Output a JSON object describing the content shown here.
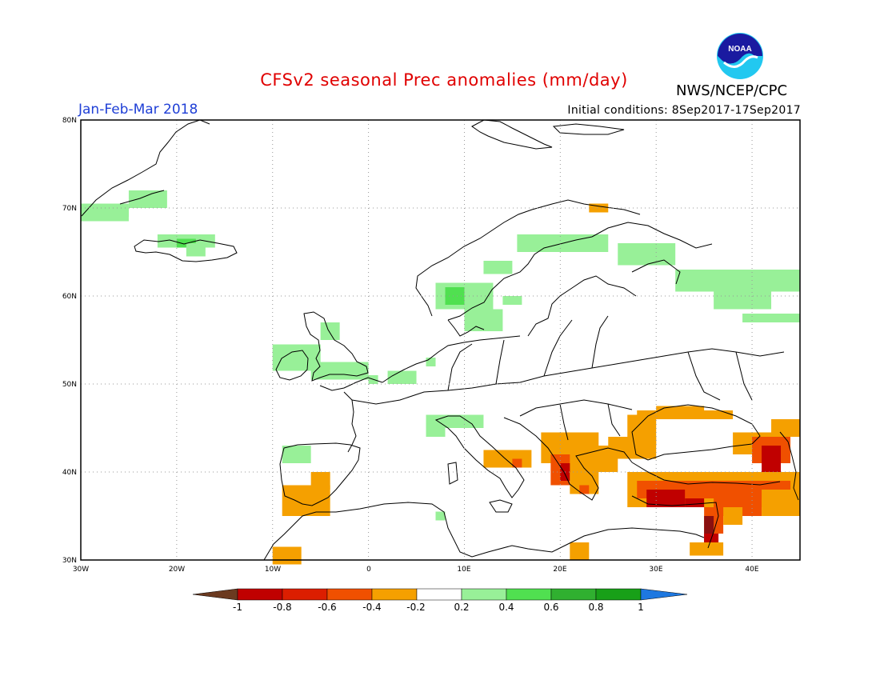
{
  "header": {
    "title": "CFSv2 seasonal Prec anomalies (mm/day)",
    "season": "Jan-Feb-Mar 2018",
    "initial_conditions": "Initial conditions: 8Sep2017-17Sep2017",
    "agency": "NWS/NCEP/CPC",
    "logo_text": "NOAA"
  },
  "axes": {
    "lat_labels": [
      "80N",
      "70N",
      "60N",
      "50N",
      "40N",
      "30N"
    ],
    "lon_labels": [
      "30W",
      "20W",
      "10W",
      "0",
      "10E",
      "20E",
      "30E",
      "40E"
    ]
  },
  "colorbar": {
    "labels": [
      "-1",
      "-0.8",
      "-0.6",
      "-0.4",
      "-0.2",
      "0.2",
      "0.4",
      "0.6",
      "0.8",
      "1"
    ],
    "colors": [
      "#6b3a20",
      "#c00000",
      "#dc1e00",
      "#f05000",
      "#f5a000",
      "#ffffff",
      "#98f098",
      "#50e050",
      "#30b030",
      "#18a018",
      "#1e78e0"
    ]
  },
  "anomaly_colors": {
    "light_green": "#98f098",
    "green": "#50e050",
    "orange": "#f5a000",
    "red_orange": "#f05000",
    "red": "#c00000",
    "dark_red": "#8a1010"
  }
}
